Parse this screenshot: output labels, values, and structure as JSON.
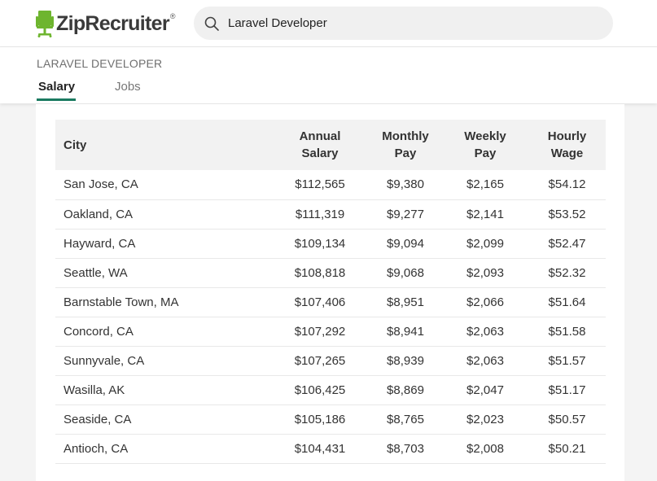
{
  "header": {
    "logo_text": "ZipRecruiter",
    "logo_reg": "®",
    "brand_color": "#6eb52f",
    "search_value": "Laravel Developer"
  },
  "subheader": {
    "role_title": "LARAVEL DEVELOPER",
    "tabs": [
      {
        "label": "Salary",
        "active": true
      },
      {
        "label": "Jobs",
        "active": false
      }
    ],
    "accent_color": "#1a7a60"
  },
  "table": {
    "headers": {
      "city": "City",
      "annual": [
        "Annual",
        "Salary"
      ],
      "monthly": [
        "Monthly",
        "Pay"
      ],
      "weekly": [
        "Weekly",
        "Pay"
      ],
      "hourly": [
        "Hourly",
        "Wage"
      ]
    },
    "rows": [
      {
        "city": "San Jose, CA",
        "annual": "$112,565",
        "monthly": "$9,380",
        "weekly": "$2,165",
        "hourly": "$54.12"
      },
      {
        "city": "Oakland, CA",
        "annual": "$111,319",
        "monthly": "$9,277",
        "weekly": "$2,141",
        "hourly": "$53.52"
      },
      {
        "city": "Hayward, CA",
        "annual": "$109,134",
        "monthly": "$9,094",
        "weekly": "$2,099",
        "hourly": "$52.47"
      },
      {
        "city": "Seattle, WA",
        "annual": "$108,818",
        "monthly": "$9,068",
        "weekly": "$2,093",
        "hourly": "$52.32"
      },
      {
        "city": "Barnstable Town, MA",
        "annual": "$107,406",
        "monthly": "$8,951",
        "weekly": "$2,066",
        "hourly": "$51.64"
      },
      {
        "city": "Concord, CA",
        "annual": "$107,292",
        "monthly": "$8,941",
        "weekly": "$2,063",
        "hourly": "$51.58"
      },
      {
        "city": "Sunnyvale, CA",
        "annual": "$107,265",
        "monthly": "$8,939",
        "weekly": "$2,063",
        "hourly": "$51.57"
      },
      {
        "city": "Wasilla, AK",
        "annual": "$106,425",
        "monthly": "$8,869",
        "weekly": "$2,047",
        "hourly": "$51.17"
      },
      {
        "city": "Seaside, CA",
        "annual": "$105,186",
        "monthly": "$8,765",
        "weekly": "$2,023",
        "hourly": "$50.57"
      },
      {
        "city": "Antioch, CA",
        "annual": "$104,431",
        "monthly": "$8,703",
        "weekly": "$2,008",
        "hourly": "$50.21"
      }
    ]
  }
}
